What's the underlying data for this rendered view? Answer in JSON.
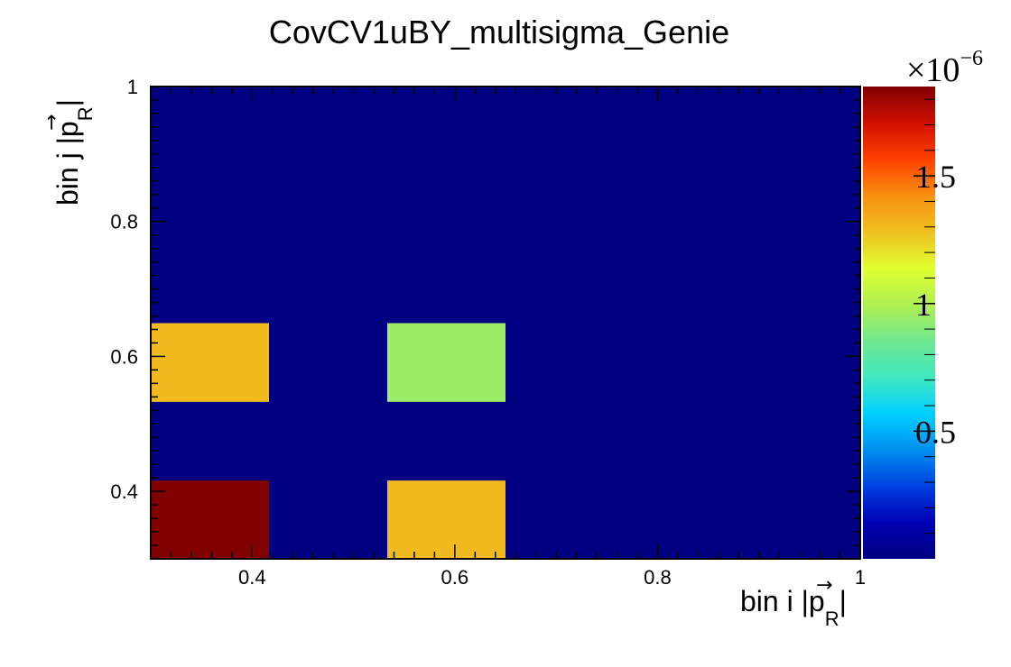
{
  "chart_data": {
    "type": "heatmap",
    "title": "CovCV1uBY_multisigma_Genie",
    "xlabel": {
      "prefix": "bin i |",
      "vector": "p",
      "arrow": "→",
      "subscript": "R",
      "suffix": "|"
    },
    "ylabel": {
      "prefix": "bin j |",
      "vector": "p",
      "arrow": "→",
      "subscript": "R",
      "suffix": "|"
    },
    "xlim": [
      0.3,
      1.0
    ],
    "ylim": [
      0.3,
      1.0
    ],
    "x_ticks": [
      {
        "value": 0.4,
        "label": "0.4"
      },
      {
        "value": 0.6,
        "label": "0.6"
      },
      {
        "value": 0.8,
        "label": "0.8"
      },
      {
        "value": 1.0,
        "label": "1"
      }
    ],
    "y_ticks": [
      {
        "value": 0.4,
        "label": "0.4"
      },
      {
        "value": 0.6,
        "label": "0.6"
      },
      {
        "value": 0.8,
        "label": "0.8"
      },
      {
        "value": 1.0,
        "label": "1"
      }
    ],
    "x_bin_edges": [
      0.3,
      0.4167,
      0.5333,
      0.65,
      0.7667,
      0.8833,
      1.0
    ],
    "y_bin_edges": [
      0.3,
      0.4167,
      0.5333,
      0.65,
      0.7667,
      0.8833,
      1.0
    ],
    "z_values": [
      [
        1.85e-06,
        0,
        1.3e-06,
        0,
        0,
        0
      ],
      [
        0,
        0,
        0,
        0,
        0,
        0
      ],
      [
        1.3e-06,
        0,
        9.5e-07,
        0,
        0,
        0
      ],
      [
        0,
        0,
        0,
        0,
        0,
        0
      ],
      [
        0,
        0,
        0,
        0,
        0,
        0
      ],
      [
        0,
        0,
        0,
        0,
        0,
        0
      ]
    ],
    "z_range": [
      0,
      1.85e-06
    ],
    "colorbar": {
      "exponent_base": "×10",
      "exponent_power": "−6",
      "ticks": [
        {
          "value": 0.5,
          "label": "0.5"
        },
        {
          "value": 1.0,
          "label": "1"
        },
        {
          "value": 1.5,
          "label": "1.5"
        }
      ],
      "scale_min": 0.0,
      "scale_max": 1.85
    },
    "colormap": [
      "#000080",
      "#0000b4",
      "#0040e0",
      "#0090f0",
      "#00d0ff",
      "#40e8c0",
      "#70e890",
      "#b0f050",
      "#e0ff30",
      "#f0c020",
      "#f89010",
      "#ff4000",
      "#d01000",
      "#800000"
    ]
  }
}
